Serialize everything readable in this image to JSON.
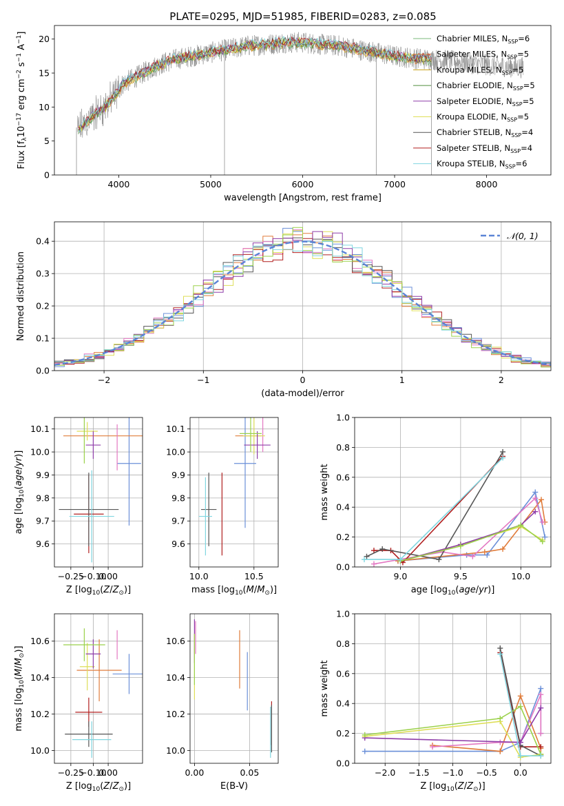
{
  "figure": {
    "title": "PLATE=0295, MJD=51985, FIBERID=0283, z=0.085"
  },
  "colors": {
    "data": "#808080",
    "series": [
      "#7ab97a",
      "#e07b39",
      "#c8a017",
      "#4f8f3f",
      "#8e3ca8",
      "#dede57",
      "#555555",
      "#b01e1e",
      "#7fd6e0"
    ],
    "hist": [
      "#6a8fd8",
      "#e07b39",
      "#e377c2",
      "#b01e1e",
      "#555555",
      "#dede57",
      "#8e3ca8",
      "#9bd14a",
      "#7fd6e0"
    ],
    "gauss": "#5b84d6"
  },
  "chart_data": [
    {
      "id": "spectrum",
      "type": "line",
      "xlabel": "wavelength [Angstrom, rest frame]",
      "ylabel": "Flux [f",
      "xlim": [
        3300,
        8700
      ],
      "ylim": [
        0,
        22
      ],
      "xticks": [
        4000,
        5000,
        6000,
        7000,
        8000
      ],
      "yticks": [
        0,
        5,
        10,
        15,
        20
      ],
      "grid": false,
      "legend_position": "upper-right",
      "legend": [
        {
          "base": "Chabrier MILES, N",
          "n": "6"
        },
        {
          "base": "Salpeter MILES, N",
          "n": "5"
        },
        {
          "base": "Kroupa MILES, N",
          "n": "5"
        },
        {
          "base": "Chabrier ELODIE, N",
          "n": "5"
        },
        {
          "base": "Salpeter ELODIE, N",
          "n": "5"
        },
        {
          "base": "Kroupa ELODIE, N",
          "n": "5"
        },
        {
          "base": "Chabrier STELIB, N",
          "n": "4"
        },
        {
          "base": "Salpeter STELIB, N",
          "n": "4"
        },
        {
          "base": "Kroupa STELIB, N",
          "n": "6"
        }
      ],
      "legend_subscript": "SSP",
      "continuum": {
        "x": [
          3550,
          3700,
          3850,
          3950,
          4050,
          4200,
          4400,
          4600,
          4800,
          5000,
          5200,
          5400,
          5600,
          5800,
          6000,
          6200,
          6400,
          6600,
          6800,
          7000,
          7200,
          7400,
          7600,
          7800,
          8000,
          8200,
          8400
        ],
        "y": [
          6.5,
          8.5,
          10.0,
          11.5,
          13.5,
          14.5,
          16.0,
          17.0,
          17.5,
          18.0,
          18.5,
          19.0,
          19.2,
          19.5,
          19.5,
          19.2,
          19.0,
          18.5,
          18.0,
          17.5,
          17.2,
          17.0,
          16.8,
          16.5,
          16.2,
          16.0,
          15.8
        ]
      }
    },
    {
      "id": "residuals",
      "type": "step",
      "xlabel": "(data-model)/error",
      "ylabel": "Normed distribution",
      "xlim": [
        -2.5,
        2.5
      ],
      "ylim": [
        0,
        0.46
      ],
      "xticks": [
        -2,
        -1,
        0,
        1,
        2
      ],
      "yticks": [
        0.0,
        0.1,
        0.2,
        0.3,
        0.4
      ],
      "grid": true,
      "legend": [
        "𝒩(0, 1)"
      ],
      "legend_position": "upper-right",
      "bin_edges_from": -2.5,
      "bin_width": 0.1,
      "n_bins": 50
    },
    {
      "id": "age-vs-Z",
      "type": "scatter",
      "xlabel": "Z [log",
      "ylabel": "age  [log",
      "xlim": [
        -0.36,
        0.23
      ],
      "ylim": [
        9.5,
        10.15
      ],
      "xticks": [
        -0.25,
        -0.1,
        0.0
      ],
      "yticks": [
        9.6,
        9.7,
        9.8,
        9.9,
        10.0,
        10.1
      ],
      "grid": true,
      "points": [
        {
          "x": 0.14,
          "y": 9.95,
          "xerr": 0.08,
          "yerr": 0.27
        },
        {
          "x": 0.0,
          "y": 10.07,
          "xerr": 0.3,
          "yerr": 0.0
        },
        {
          "x": 0.06,
          "y": 10.02,
          "xerr": 0.0,
          "yerr": 0.1
        },
        {
          "x": -0.13,
          "y": 9.73,
          "xerr": 0.1,
          "yerr": 0.17
        },
        {
          "x": -0.13,
          "y": 9.75,
          "xerr": 0.2,
          "yerr": 0.16
        },
        {
          "x": -0.14,
          "y": 10.09,
          "xerr": 0.07,
          "yerr": 0.04
        },
        {
          "x": -0.1,
          "y": 10.03,
          "xerr": 0.05,
          "yerr": 0.06
        },
        {
          "x": -0.16,
          "y": 10.05,
          "xerr": 0.0,
          "yerr": 0.1
        },
        {
          "x": -0.11,
          "y": 9.72,
          "xerr": 0.15,
          "yerr": 0.2
        }
      ]
    },
    {
      "id": "age-vs-mass",
      "type": "scatter",
      "xlabel": "mass [log",
      "ylabel": "",
      "xlim": [
        9.92,
        10.72
      ],
      "ylim": [
        9.5,
        10.15
      ],
      "xticks": [
        10.0,
        10.5
      ],
      "yticks": [
        9.6,
        9.7,
        9.8,
        9.9,
        10.0,
        10.1
      ],
      "grid": true,
      "points": [
        {
          "x": 10.42,
          "y": 9.95,
          "xerr": 0.1,
          "yerr": 0.28
        },
        {
          "x": 10.45,
          "y": 10.07,
          "xerr": 0.12,
          "yerr": 0.0
        },
        {
          "x": 10.58,
          "y": 10.08,
          "xerr": 0.0,
          "yerr": 0.08
        },
        {
          "x": 10.21,
          "y": 9.73,
          "xerr": 0.0,
          "yerr": 0.18
        },
        {
          "x": 10.09,
          "y": 9.75,
          "xerr": 0.07,
          "yerr": 0.16
        },
        {
          "x": 10.5,
          "y": 10.07,
          "xerr": 0.1,
          "yerr": 0.08
        },
        {
          "x": 10.53,
          "y": 10.03,
          "xerr": 0.12,
          "yerr": 0.06
        },
        {
          "x": 10.47,
          "y": 10.08,
          "xerr": 0.1,
          "yerr": 0.08
        },
        {
          "x": 10.06,
          "y": 9.72,
          "xerr": 0.06,
          "yerr": 0.17
        }
      ]
    },
    {
      "id": "mass-weight-vs-age",
      "type": "line",
      "xlabel": "age  [log",
      "ylabel": "mass weight",
      "xlim": [
        8.62,
        10.25
      ],
      "ylim": [
        0,
        1.0
      ],
      "xticks": [
        9.0,
        9.5,
        10.0
      ],
      "yticks": [
        0.0,
        0.2,
        0.4,
        0.6,
        0.8,
        1.0
      ],
      "grid": true,
      "series": [
        {
          "x": [
            8.98,
            9.55,
            9.72,
            10.12,
            10.2
          ],
          "y": [
            0.04,
            0.08,
            0.08,
            0.5,
            0.2
          ]
        },
        {
          "x": [
            8.98,
            9.7,
            9.85,
            10.17,
            10.2
          ],
          "y": [
            0.04,
            0.1,
            0.12,
            0.45,
            0.3
          ]
        },
        {
          "x": [
            8.78,
            9.35,
            9.6,
            10.12,
            10.18
          ],
          "y": [
            0.02,
            0.1,
            0.07,
            0.46,
            0.3
          ]
        },
        {
          "x": [
            8.78,
            8.92,
            9.02,
            9.85
          ],
          "y": [
            0.11,
            0.11,
            0.03,
            0.74
          ]
        },
        {
          "x": [
            8.72,
            8.85,
            9.32,
            9.85
          ],
          "y": [
            0.07,
            0.12,
            0.05,
            0.77
          ]
        },
        {
          "x": [
            9.0,
            9.5,
            10.0,
            10.18
          ],
          "y": [
            0.04,
            0.15,
            0.27,
            0.18
          ]
        },
        {
          "x": [
            9.0,
            9.5,
            10.0,
            10.12
          ],
          "y": [
            0.04,
            0.15,
            0.28,
            0.37
          ]
        },
        {
          "x": [
            9.0,
            9.5,
            10.0,
            10.18
          ],
          "y": [
            0.04,
            0.14,
            0.28,
            0.17
          ]
        },
        {
          "x": [
            8.7,
            9.0,
            9.85
          ],
          "y": [
            0.05,
            0.05,
            0.73
          ]
        }
      ]
    },
    {
      "id": "mass-vs-Z",
      "type": "scatter",
      "xlabel": "Z [log",
      "ylabel": "mass [log",
      "xlim": [
        -0.36,
        0.23
      ],
      "ylim": [
        9.93,
        10.75
      ],
      "xticks": [
        -0.25,
        -0.1,
        0.0
      ],
      "yticks": [
        10.0,
        10.2,
        10.4,
        10.6
      ],
      "grid": true,
      "points": [
        {
          "x": 0.14,
          "y": 10.42,
          "xerr": 0.11,
          "yerr": 0.11
        },
        {
          "x": -0.06,
          "y": 10.44,
          "xerr": 0.15,
          "yerr": 0.17
        },
        {
          "x": 0.06,
          "y": 10.58,
          "xerr": 0.0,
          "yerr": 0.08
        },
        {
          "x": -0.13,
          "y": 10.21,
          "xerr": 0.09,
          "yerr": 0.08
        },
        {
          "x": -0.13,
          "y": 10.09,
          "xerr": 0.16,
          "yerr": 0.07
        },
        {
          "x": -0.14,
          "y": 10.46,
          "xerr": 0.05,
          "yerr": 0.13
        },
        {
          "x": -0.1,
          "y": 10.53,
          "xerr": 0.05,
          "yerr": 0.08
        },
        {
          "x": -0.16,
          "y": 10.58,
          "xerr": 0.14,
          "yerr": 0.09
        },
        {
          "x": -0.11,
          "y": 10.06,
          "xerr": 0.13,
          "yerr": 0.1
        }
      ]
    },
    {
      "id": "mass-vs-EBV",
      "type": "scatter",
      "xlabel": "E(B-V)",
      "ylabel": "",
      "xlim": [
        -0.004,
        0.076
      ],
      "ylim": [
        9.93,
        10.75
      ],
      "xticks": [
        0.0,
        0.05
      ],
      "yticks": [
        10.0,
        10.2,
        10.4,
        10.6
      ],
      "grid": true,
      "points": [
        {
          "x": 0.048,
          "y": 10.38,
          "xerr": 0.0,
          "yerr": 0.16
        },
        {
          "x": 0.041,
          "y": 10.5,
          "xerr": 0.0,
          "yerr": 0.16
        },
        {
          "x": 0.001,
          "y": 10.62,
          "xerr": 0.0,
          "yerr": 0.09
        },
        {
          "x": 0.07,
          "y": 10.15,
          "xerr": 0.0,
          "yerr": 0.12
        },
        {
          "x": 0.07,
          "y": 10.12,
          "xerr": 0.0,
          "yerr": 0.13
        },
        {
          "x": 0.0,
          "y": 10.46,
          "xerr": 0.0,
          "yerr": 0.18
        },
        {
          "x": 0.0,
          "y": 10.6,
          "xerr": 0.0,
          "yerr": 0.12
        },
        {
          "x": 0.0,
          "y": 10.5,
          "xerr": 0.0,
          "yerr": 0.14
        },
        {
          "x": 0.069,
          "y": 10.1,
          "xerr": 0.0,
          "yerr": 0.14
        }
      ]
    },
    {
      "id": "mass-weight-vs-Z",
      "type": "line",
      "xlabel": "Z [log",
      "ylabel": "mass weight",
      "xlim": [
        -2.45,
        0.45
      ],
      "ylim": [
        0,
        1.0
      ],
      "xticks": [
        -2.0,
        -1.5,
        -1.0,
        -0.5,
        0.0
      ],
      "yticks": [
        0.0,
        0.2,
        0.4,
        0.6,
        0.8,
        1.0
      ],
      "grid": true,
      "series": [
        {
          "x": [
            -2.3,
            -0.3,
            0.0,
            0.3,
            0.3
          ],
          "y": [
            0.08,
            0.08,
            0.14,
            0.5,
            0.2
          ]
        },
        {
          "x": [
            -1.3,
            -0.3,
            0.0,
            0.3,
            0.3
          ],
          "y": [
            0.12,
            0.08,
            0.45,
            0.1,
            0.06
          ]
        },
        {
          "x": [
            -1.3,
            -0.3,
            0.0,
            0.3,
            0.3
          ],
          "y": [
            0.11,
            0.14,
            0.14,
            0.46,
            0.2
          ]
        },
        {
          "x": [
            -0.3,
            0.0,
            0.3
          ],
          "y": [
            0.74,
            0.11,
            0.11
          ]
        },
        {
          "x": [
            -0.3,
            0.0,
            0.3
          ],
          "y": [
            0.77,
            0.12,
            0.05
          ]
        },
        {
          "x": [
            -2.3,
            -0.3,
            0.0,
            0.3
          ],
          "y": [
            0.18,
            0.28,
            0.04,
            0.06
          ]
        },
        {
          "x": [
            -2.3,
            0.0,
            0.3
          ],
          "y": [
            0.17,
            0.14,
            0.37
          ]
        },
        {
          "x": [
            -2.3,
            -0.3,
            0.0,
            0.3
          ],
          "y": [
            0.19,
            0.3,
            0.38,
            0.06
          ]
        },
        {
          "x": [
            -0.3,
            0.0,
            0.3
          ],
          "y": [
            0.73,
            0.05,
            0.05
          ]
        }
      ]
    }
  ]
}
